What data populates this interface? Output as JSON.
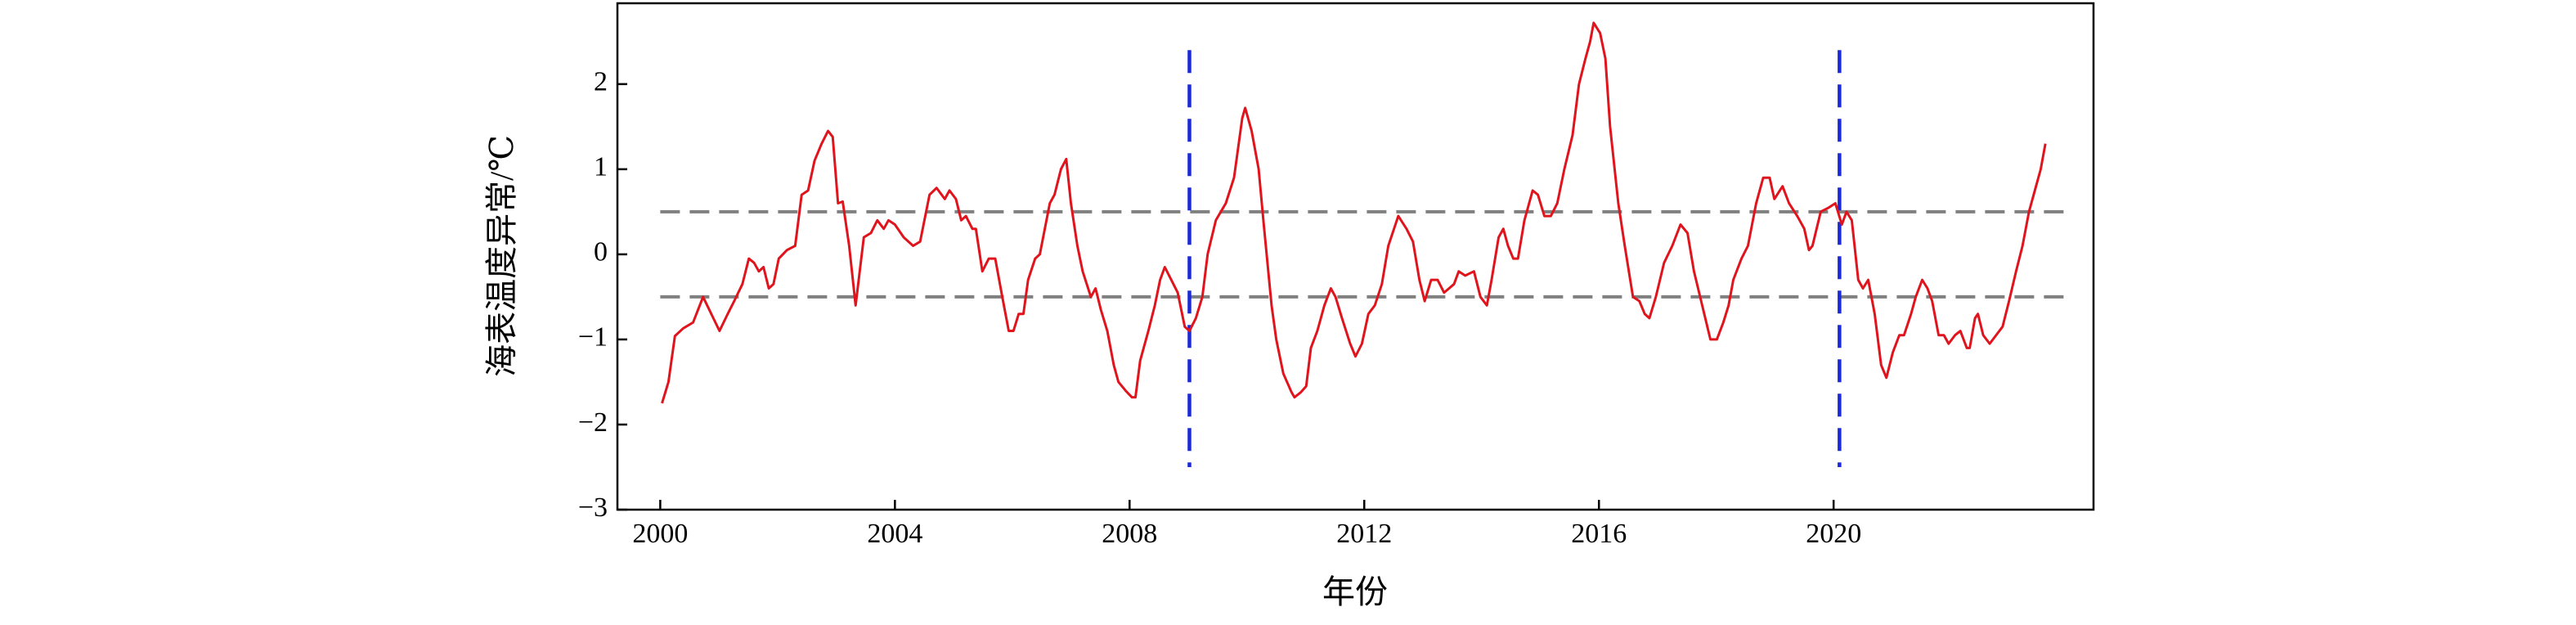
{
  "chart_data": {
    "type": "line",
    "x_label": "年份",
    "y_label": "海表温度异常/℃",
    "xlim": [
      1999.27,
      2024.43
    ],
    "ylim": [
      -3,
      2.95
    ],
    "xticks": [
      2000,
      2004,
      2008,
      2012,
      2016,
      2020
    ],
    "yticks": [
      {
        "value": -3,
        "label": "−3"
      },
      {
        "value": -2,
        "label": "−2"
      },
      {
        "value": -1,
        "label": "−1"
      },
      0,
      1,
      2
    ],
    "hlines": [
      0.5,
      -0.5
    ],
    "hline_span": [
      2000,
      2024
    ],
    "hline_color": "#808080",
    "vlines": [
      2009.02,
      2020.1
    ],
    "vline_span": [
      -2.5,
      2.4
    ],
    "vline_color": "#1a2ad6",
    "x": [
      2000.03,
      2000.14,
      2000.25,
      2000.39,
      2000.56,
      2000.73,
      2000.87,
      2001.01,
      2001.15,
      2001.26,
      2001.4,
      2001.51,
      2001.6,
      2001.68,
      2001.76,
      2001.85,
      2001.93,
      2002.02,
      2002.16,
      2002.3,
      2002.41,
      2002.52,
      2002.63,
      2002.75,
      2002.86,
      2002.94,
      2003.03,
      2003.11,
      2003.22,
      2003.33,
      2003.47,
      2003.59,
      2003.7,
      2003.81,
      2003.89,
      2004.0,
      2004.15,
      2004.31,
      2004.43,
      2004.59,
      2004.71,
      2004.85,
      2004.93,
      2005.04,
      2005.13,
      2005.21,
      2005.32,
      2005.38,
      2005.49,
      2005.6,
      2005.71,
      2005.83,
      2005.94,
      2006.02,
      2006.11,
      2006.19,
      2006.27,
      2006.39,
      2006.47,
      2006.64,
      2006.72,
      2006.83,
      2006.92,
      2007.0,
      2007.11,
      2007.2,
      2007.34,
      2007.42,
      2007.51,
      2007.62,
      2007.73,
      2007.81,
      2007.93,
      2008.04,
      2008.1,
      2008.18,
      2008.32,
      2008.43,
      2008.52,
      2008.6,
      2008.71,
      2008.82,
      2008.94,
      2009.02,
      2009.13,
      2009.24,
      2009.33,
      2009.47,
      2009.64,
      2009.78,
      2009.92,
      2009.97,
      2010.08,
      2010.2,
      2010.28,
      2010.42,
      2010.5,
      2010.62,
      2010.76,
      2010.81,
      2010.92,
      2011.01,
      2011.09,
      2011.2,
      2011.32,
      2011.43,
      2011.51,
      2011.62,
      2011.76,
      2011.85,
      2011.96,
      2012.07,
      2012.18,
      2012.3,
      2012.41,
      2012.58,
      2012.72,
      2012.83,
      2012.94,
      2013.03,
      2013.14,
      2013.25,
      2013.36,
      2013.53,
      2013.61,
      2013.72,
      2013.87,
      2013.98,
      2014.09,
      2014.17,
      2014.29,
      2014.37,
      2014.45,
      2014.54,
      2014.62,
      2014.73,
      2014.87,
      2014.96,
      2015.07,
      2015.18,
      2015.29,
      2015.41,
      2015.55,
      2015.66,
      2015.77,
      2015.85,
      2015.91,
      2016.02,
      2016.11,
      2016.19,
      2016.33,
      2016.44,
      2016.58,
      2016.69,
      2016.78,
      2016.86,
      2016.97,
      2017.11,
      2017.25,
      2017.39,
      2017.51,
      2017.62,
      2017.76,
      2017.9,
      2018.01,
      2018.12,
      2018.21,
      2018.29,
      2018.43,
      2018.54,
      2018.68,
      2018.8,
      2018.91,
      2018.99,
      2019.13,
      2019.24,
      2019.38,
      2019.5,
      2019.58,
      2019.64,
      2019.78,
      2019.92,
      2020.03,
      2020.14,
      2020.22,
      2020.31,
      2020.42,
      2020.5,
      2020.59,
      2020.7,
      2020.81,
      2020.9,
      2021.01,
      2021.12,
      2021.2,
      2021.32,
      2021.4,
      2021.51,
      2021.6,
      2021.68,
      2021.79,
      2021.88,
      2021.96,
      2022.07,
      2022.16,
      2022.27,
      2022.32,
      2022.41,
      2022.46,
      2022.55,
      2022.66,
      2022.77,
      2022.88,
      2022.99,
      2023.11,
      2023.22,
      2023.33,
      2023.45,
      2023.53,
      2023.61
    ],
    "series": [
      {
        "color": "#e0141c",
        "values": [
          -1.75,
          -1.5,
          -0.96,
          -0.87,
          -0.8,
          -0.5,
          -0.7,
          -0.9,
          -0.7,
          -0.55,
          -0.35,
          -0.05,
          -0.1,
          -0.2,
          -0.15,
          -0.4,
          -0.35,
          -0.05,
          0.05,
          0.1,
          0.7,
          0.75,
          1.1,
          1.3,
          1.45,
          1.38,
          0.6,
          0.62,
          0.1,
          -0.6,
          0.2,
          0.25,
          0.4,
          0.3,
          0.4,
          0.35,
          0.2,
          0.1,
          0.15,
          0.7,
          0.78,
          0.65,
          0.75,
          0.65,
          0.4,
          0.45,
          0.3,
          0.3,
          -0.2,
          -0.05,
          -0.05,
          -0.5,
          -0.9,
          -0.9,
          -0.7,
          -0.7,
          -0.3,
          -0.05,
          0,
          0.6,
          0.7,
          1.0,
          1.12,
          0.6,
          0.1,
          -0.2,
          -0.5,
          -0.4,
          -0.65,
          -0.9,
          -1.3,
          -1.5,
          -1.6,
          -1.68,
          -1.68,
          -1.25,
          -0.9,
          -0.6,
          -0.3,
          -0.15,
          -0.3,
          -0.45,
          -0.85,
          -0.9,
          -0.75,
          -0.5,
          0,
          0.4,
          0.6,
          0.9,
          1.6,
          1.72,
          1.45,
          1.0,
          0.4,
          -0.6,
          -1.0,
          -1.4,
          -1.62,
          -1.68,
          -1.62,
          -1.55,
          -1.1,
          -0.9,
          -0.6,
          -0.4,
          -0.5,
          -0.75,
          -1.05,
          -1.2,
          -1.05,
          -0.7,
          -0.6,
          -0.35,
          0.1,
          0.45,
          0.3,
          0.15,
          -0.3,
          -0.55,
          -0.3,
          -0.3,
          -0.45,
          -0.35,
          -0.2,
          -0.25,
          -0.2,
          -0.5,
          -0.6,
          -0.3,
          0.2,
          0.3,
          0.1,
          -0.05,
          -0.05,
          0.4,
          0.75,
          0.7,
          0.45,
          0.45,
          0.6,
          1.0,
          1.4,
          2.0,
          2.3,
          2.5,
          2.72,
          2.6,
          2.3,
          1.5,
          0.6,
          0.1,
          -0.5,
          -0.55,
          -0.7,
          -0.75,
          -0.5,
          -0.1,
          0.1,
          0.35,
          0.25,
          -0.2,
          -0.6,
          -1.0,
          -1.0,
          -0.8,
          -0.6,
          -0.3,
          -0.05,
          0.1,
          0.6,
          0.9,
          0.9,
          0.65,
          0.8,
          0.6,
          0.45,
          0.3,
          0.05,
          0.1,
          0.5,
          0.55,
          0.6,
          0.35,
          0.5,
          0.4,
          -0.3,
          -0.4,
          -0.3,
          -0.7,
          -1.3,
          -1.45,
          -1.15,
          -0.95,
          -0.95,
          -0.7,
          -0.5,
          -0.3,
          -0.4,
          -0.55,
          -0.95,
          -0.95,
          -1.05,
          -0.95,
          -0.9,
          -1.1,
          -1.1,
          -0.75,
          -0.7,
          -0.95,
          -1.05,
          -0.95,
          -0.85,
          -0.55,
          -0.2,
          0.1,
          0.5,
          0.8,
          1.0,
          1.3
        ]
      }
    ]
  }
}
